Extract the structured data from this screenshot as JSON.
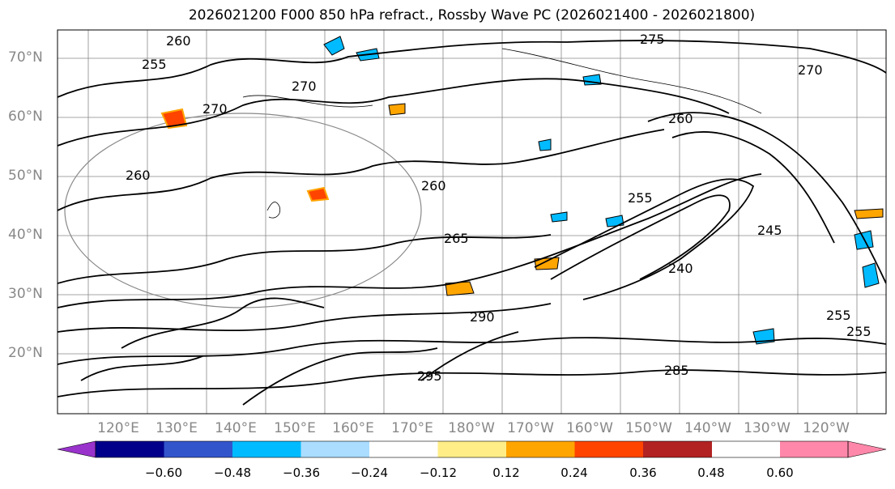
{
  "title": "2026021200 F000 850 hPa refract., Rossby Wave PC (2026021400 - 2026021800)",
  "lat_labels": [
    "70°N",
    "60°N",
    "50°N",
    "40°N",
    "30°N",
    "20°N"
  ],
  "lon_labels": [
    "120°E",
    "130°E",
    "140°E",
    "150°E",
    "160°E",
    "170°E",
    "180°W",
    "170°W",
    "160°W",
    "150°W",
    "140°W",
    "130°W",
    "120°W"
  ],
  "contour_labels": [
    "275",
    "270",
    "270",
    "270",
    "260",
    "260",
    "260",
    "255",
    "265",
    "260",
    "255",
    "240",
    "245",
    "255",
    "290",
    "295",
    "285",
    "255"
  ],
  "colorbar": {
    "colors": [
      "#9933cc",
      "#00008b",
      "#3355cc",
      "#00bbff",
      "#aaddff",
      "#ffffff",
      "#ffee88",
      "#ffa500",
      "#ff4400",
      "#b22222",
      "#ff88aa"
    ],
    "ticks": [
      "−0.60",
      "−0.48",
      "−0.36",
      "−0.24",
      "−0.12",
      "0.12",
      "0.24",
      "0.36",
      "0.48",
      "0.60"
    ]
  },
  "colors": {
    "contour": "#000000",
    "grid": "#888888",
    "coast": "#000000"
  }
}
